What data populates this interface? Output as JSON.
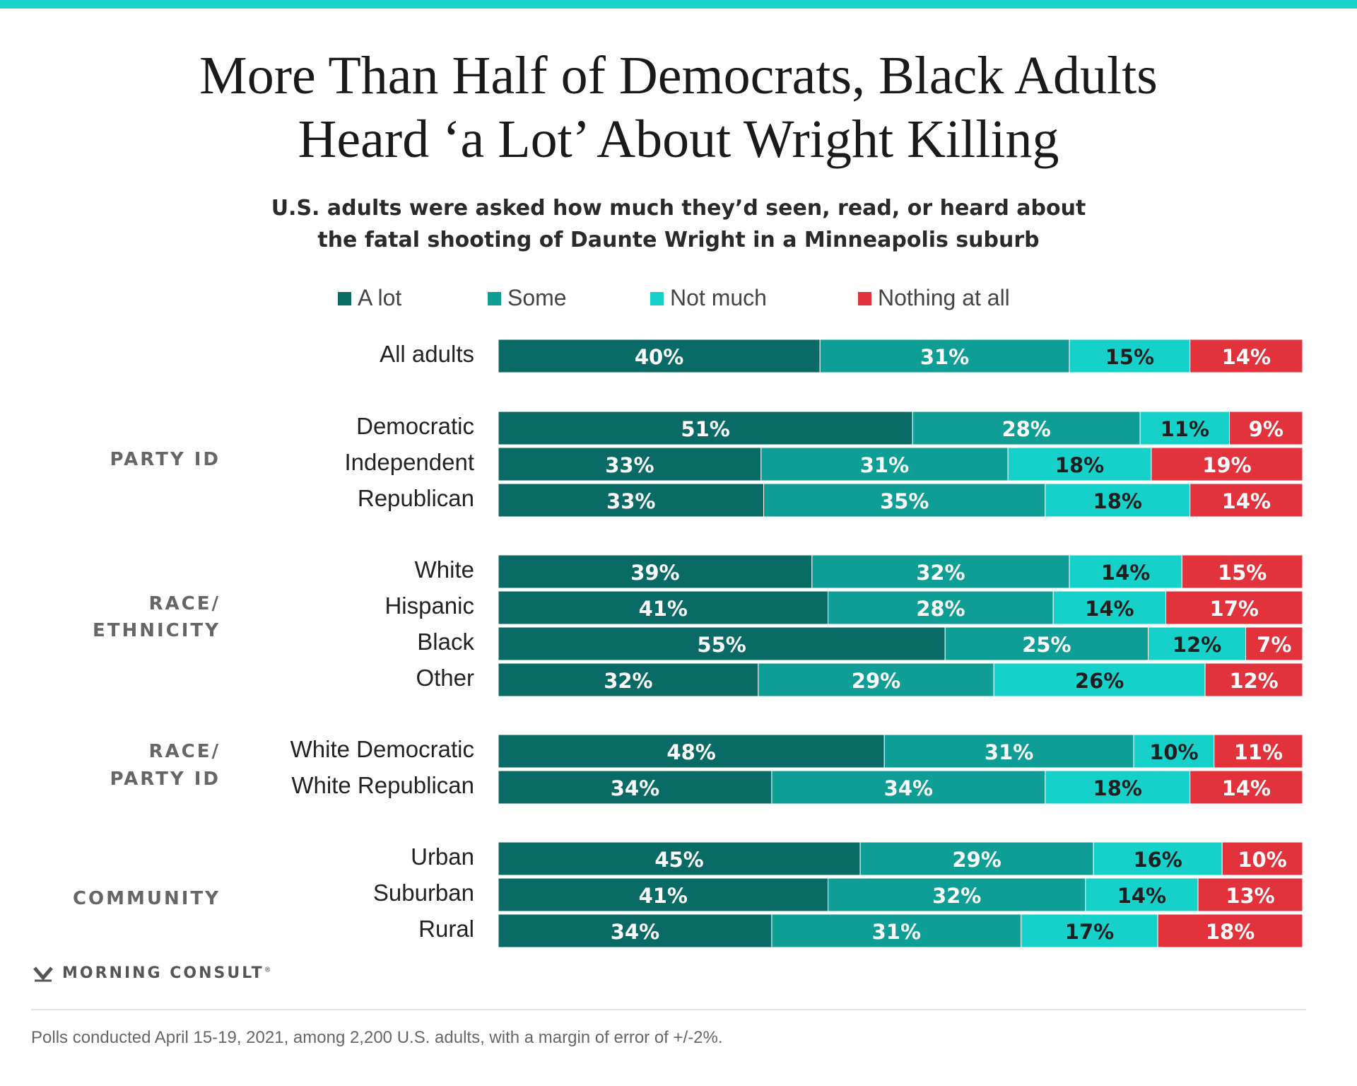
{
  "header": {
    "title_line1": "More Than Half of Democrats, Black Adults",
    "title_line2": "Heard ‘a Lot’ About Wright Killing",
    "subtitle_line1": "U.S. adults were asked how much they’d seen, read, or heard about",
    "subtitle_line2": "the fatal shooting of Daunte Wright in a Minneapolis suburb"
  },
  "colors": {
    "top_rule": "#19d3cc",
    "a_lot": "#0a6b66",
    "some": "#0e9e96",
    "not_much": "#16d1c9",
    "nothing_at_all": "#e2333c",
    "group_label": "#666666",
    "category_label": "#222222"
  },
  "chart_data": {
    "type": "bar",
    "orientation": "horizontal",
    "stacked": true,
    "unit": "%",
    "xlim": [
      0,
      100
    ],
    "legend_position": "top",
    "grid": false,
    "series_names": [
      "A lot",
      "Some",
      "Not much",
      "Nothing at all"
    ],
    "groups": [
      {
        "label": "",
        "rows": [
          {
            "label": "All adults",
            "values": [
              40,
              31,
              15,
              14
            ]
          }
        ]
      },
      {
        "label": "PARTY ID",
        "rows": [
          {
            "label": "Democratic",
            "values": [
              51,
              28,
              11,
              9
            ]
          },
          {
            "label": "Independent",
            "values": [
              33,
              31,
              18,
              19
            ]
          },
          {
            "label": "Republican",
            "values": [
              33,
              35,
              18,
              14
            ]
          }
        ]
      },
      {
        "label": "RACE/\nETHNICITY",
        "rows": [
          {
            "label": "White",
            "values": [
              39,
              32,
              14,
              15
            ]
          },
          {
            "label": "Hispanic",
            "values": [
              41,
              28,
              14,
              17
            ]
          },
          {
            "label": "Black",
            "values": [
              55,
              25,
              12,
              7
            ]
          },
          {
            "label": "Other",
            "values": [
              32,
              29,
              26,
              12
            ]
          }
        ]
      },
      {
        "label": "RACE/\nPARTY ID",
        "rows": [
          {
            "label": "White Democratic",
            "values": [
              48,
              31,
              10,
              11
            ]
          },
          {
            "label": "White Republican",
            "values": [
              34,
              34,
              18,
              14
            ]
          }
        ]
      },
      {
        "label": "COMMUNITY",
        "rows": [
          {
            "label": "Urban",
            "values": [
              45,
              29,
              16,
              10
            ]
          },
          {
            "label": "Suburban",
            "values": [
              41,
              32,
              14,
              13
            ]
          },
          {
            "label": "Rural",
            "values": [
              34,
              31,
              17,
              18
            ]
          }
        ]
      }
    ]
  },
  "footer": {
    "brand": "MORNING CONSULT",
    "trademark": "®",
    "logo_icon": "morning-consult-m-logo",
    "source": "Polls conducted April 15-19, 2021, among 2,200 U.S. adults, with a margin of error of +/-2%."
  }
}
